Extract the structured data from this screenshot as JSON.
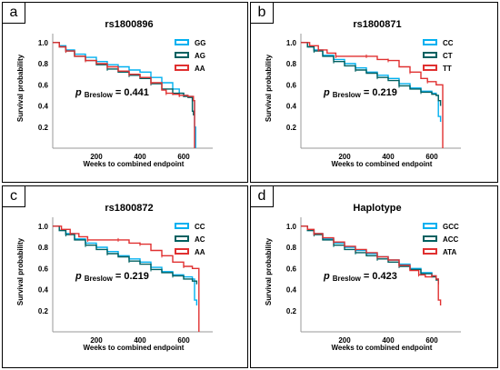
{
  "chart_data": [
    {
      "type": "line",
      "panel_label": "a",
      "title": "rs1800896",
      "xlabel": "Weeks to combined endpoint",
      "ylabel": "Survival probability",
      "xticks": [
        200,
        400,
        600
      ],
      "yticks": [
        0.2,
        0.4,
        0.6,
        0.8,
        1.0
      ],
      "xlim": [
        0,
        700
      ],
      "ylim": [
        0,
        1.05
      ],
      "legend_placement": "top-right",
      "annotation": {
        "p_symbol": "p",
        "p_subscript": "Breslow",
        "p_value_text": "= 0.441"
      },
      "series": [
        {
          "name": "GG",
          "color": "#00b0f0",
          "points": [
            [
              0,
              1.0
            ],
            [
              30,
              0.97
            ],
            [
              60,
              0.93
            ],
            [
              100,
              0.89
            ],
            [
              150,
              0.86
            ],
            [
              200,
              0.82
            ],
            [
              250,
              0.79
            ],
            [
              300,
              0.77
            ],
            [
              350,
              0.74
            ],
            [
              400,
              0.72
            ],
            [
              450,
              0.67
            ],
            [
              500,
              0.62
            ],
            [
              550,
              0.56
            ],
            [
              580,
              0.52
            ],
            [
              600,
              0.5
            ],
            [
              620,
              0.49
            ],
            [
              640,
              0.45
            ],
            [
              650,
              0.2
            ],
            [
              655,
              0.0
            ]
          ]
        },
        {
          "name": "AG",
          "color": "#006060",
          "points": [
            [
              0,
              1.0
            ],
            [
              30,
              0.96
            ],
            [
              60,
              0.92
            ],
            [
              100,
              0.87
            ],
            [
              150,
              0.83
            ],
            [
              200,
              0.79
            ],
            [
              250,
              0.75
            ],
            [
              300,
              0.72
            ],
            [
              350,
              0.69
            ],
            [
              400,
              0.66
            ],
            [
              450,
              0.61
            ],
            [
              500,
              0.56
            ],
            [
              550,
              0.52
            ],
            [
              600,
              0.49
            ],
            [
              620,
              0.48
            ],
            [
              640,
              0.35
            ],
            [
              645,
              0.31
            ]
          ]
        },
        {
          "name": "AA",
          "color": "#e03030",
          "points": [
            [
              0,
              1.0
            ],
            [
              30,
              0.96
            ],
            [
              60,
              0.92
            ],
            [
              100,
              0.87
            ],
            [
              150,
              0.83
            ],
            [
              200,
              0.8
            ],
            [
              250,
              0.77
            ],
            [
              300,
              0.73
            ],
            [
              350,
              0.7
            ],
            [
              400,
              0.67
            ],
            [
              450,
              0.62
            ],
            [
              500,
              0.55
            ],
            [
              520,
              0.52
            ],
            [
              550,
              0.51
            ],
            [
              580,
              0.5
            ],
            [
              620,
              0.49
            ],
            [
              645,
              0.45
            ],
            [
              650,
              0.0
            ]
          ]
        }
      ]
    },
    {
      "type": "line",
      "panel_label": "b",
      "title": "rs1800871",
      "xlabel": "Weeks to combined endpoint",
      "ylabel": "Survival probability",
      "xticks": [
        200,
        400,
        600
      ],
      "yticks": [
        0.2,
        0.4,
        0.6,
        0.8,
        1.0
      ],
      "xlim": [
        0,
        700
      ],
      "ylim": [
        0,
        1.05
      ],
      "legend_placement": "top-right",
      "annotation": {
        "p_symbol": "p",
        "p_subscript": "Breslow",
        "p_value_text": "= 0.219"
      },
      "series": [
        {
          "name": "CC",
          "color": "#00b0f0",
          "points": [
            [
              0,
              1.0
            ],
            [
              30,
              0.96
            ],
            [
              60,
              0.93
            ],
            [
              100,
              0.88
            ],
            [
              150,
              0.84
            ],
            [
              200,
              0.8
            ],
            [
              250,
              0.76
            ],
            [
              300,
              0.72
            ],
            [
              350,
              0.69
            ],
            [
              400,
              0.66
            ],
            [
              450,
              0.61
            ],
            [
              500,
              0.57
            ],
            [
              550,
              0.54
            ],
            [
              600,
              0.52
            ],
            [
              620,
              0.5
            ],
            [
              630,
              0.3
            ],
            [
              640,
              0.25
            ]
          ]
        },
        {
          "name": "CT",
          "color": "#006060",
          "points": [
            [
              0,
              1.0
            ],
            [
              30,
              0.96
            ],
            [
              60,
              0.92
            ],
            [
              100,
              0.87
            ],
            [
              150,
              0.82
            ],
            [
              200,
              0.78
            ],
            [
              250,
              0.74
            ],
            [
              300,
              0.71
            ],
            [
              350,
              0.67
            ],
            [
              400,
              0.64
            ],
            [
              450,
              0.59
            ],
            [
              500,
              0.56
            ],
            [
              550,
              0.53
            ],
            [
              600,
              0.51
            ],
            [
              620,
              0.5
            ],
            [
              630,
              0.45
            ],
            [
              640,
              0.4
            ]
          ]
        },
        {
          "name": "TT",
          "color": "#e03030",
          "points": [
            [
              0,
              1.0
            ],
            [
              40,
              0.97
            ],
            [
              80,
              0.93
            ],
            [
              120,
              0.9
            ],
            [
              160,
              0.87
            ],
            [
              200,
              0.87
            ],
            [
              300,
              0.87
            ],
            [
              350,
              0.84
            ],
            [
              400,
              0.83
            ],
            [
              450,
              0.77
            ],
            [
              500,
              0.72
            ],
            [
              550,
              0.66
            ],
            [
              580,
              0.63
            ],
            [
              620,
              0.6
            ],
            [
              640,
              0.6
            ],
            [
              650,
              0.0
            ]
          ]
        }
      ]
    },
    {
      "type": "line",
      "panel_label": "c",
      "title": "rs1800872",
      "xlabel": "Weeks to combined endpoint",
      "ylabel": "Survival probability",
      "xticks": [
        200,
        400,
        600
      ],
      "yticks": [
        0.2,
        0.4,
        0.6,
        0.8,
        1.0
      ],
      "xlim": [
        0,
        700
      ],
      "ylim": [
        0,
        1.05
      ],
      "legend_placement": "top-right",
      "annotation": {
        "p_symbol": "p",
        "p_subscript": "Breslow",
        "p_value_text": "= 0.219"
      },
      "series": [
        {
          "name": "CC",
          "color": "#00b0f0",
          "points": [
            [
              0,
              1.0
            ],
            [
              30,
              0.96
            ],
            [
              60,
              0.93
            ],
            [
              100,
              0.88
            ],
            [
              150,
              0.84
            ],
            [
              200,
              0.8
            ],
            [
              250,
              0.76
            ],
            [
              300,
              0.72
            ],
            [
              350,
              0.69
            ],
            [
              400,
              0.66
            ],
            [
              450,
              0.61
            ],
            [
              500,
              0.57
            ],
            [
              550,
              0.54
            ],
            [
              600,
              0.52
            ],
            [
              640,
              0.5
            ],
            [
              650,
              0.3
            ],
            [
              660,
              0.25
            ]
          ]
        },
        {
          "name": "AC",
          "color": "#006060",
          "points": [
            [
              0,
              1.0
            ],
            [
              30,
              0.96
            ],
            [
              60,
              0.92
            ],
            [
              100,
              0.87
            ],
            [
              150,
              0.82
            ],
            [
              200,
              0.78
            ],
            [
              250,
              0.74
            ],
            [
              300,
              0.71
            ],
            [
              350,
              0.67
            ],
            [
              400,
              0.64
            ],
            [
              450,
              0.59
            ],
            [
              500,
              0.56
            ],
            [
              550,
              0.53
            ],
            [
              600,
              0.5
            ],
            [
              640,
              0.48
            ],
            [
              660,
              0.45
            ]
          ]
        },
        {
          "name": "AA",
          "color": "#e03030",
          "points": [
            [
              0,
              1.0
            ],
            [
              40,
              0.97
            ],
            [
              80,
              0.93
            ],
            [
              120,
              0.9
            ],
            [
              160,
              0.87
            ],
            [
              200,
              0.87
            ],
            [
              300,
              0.87
            ],
            [
              350,
              0.84
            ],
            [
              400,
              0.83
            ],
            [
              450,
              0.77
            ],
            [
              500,
              0.72
            ],
            [
              550,
              0.66
            ],
            [
              600,
              0.62
            ],
            [
              640,
              0.6
            ],
            [
              660,
              0.6
            ],
            [
              670,
              0.0
            ]
          ]
        }
      ]
    },
    {
      "type": "line",
      "panel_label": "d",
      "title": "Haplotype",
      "xlabel": "Weeks to combined endpoint",
      "ylabel": "Survival probability",
      "xticks": [
        200,
        400,
        600
      ],
      "yticks": [
        0.2,
        0.4,
        0.6,
        0.8,
        1.0
      ],
      "xlim": [
        0,
        700
      ],
      "ylim": [
        0,
        1.05
      ],
      "legend_placement": "top-right",
      "annotation": {
        "p_symbol": "p",
        "p_subscript": "Breslow",
        "p_value_text": "= 0.423"
      },
      "series": [
        {
          "name": "GCC",
          "color": "#00b0f0",
          "points": [
            [
              0,
              1.0
            ],
            [
              30,
              0.96
            ],
            [
              60,
              0.93
            ],
            [
              100,
              0.88
            ],
            [
              150,
              0.84
            ],
            [
              200,
              0.8
            ],
            [
              250,
              0.77
            ],
            [
              300,
              0.74
            ],
            [
              350,
              0.71
            ],
            [
              400,
              0.68
            ],
            [
              450,
              0.64
            ],
            [
              500,
              0.6
            ],
            [
              550,
              0.56
            ],
            [
              600,
              0.53
            ],
            [
              620,
              0.5
            ],
            [
              630,
              0.45
            ]
          ]
        },
        {
          "name": "ACC",
          "color": "#006060",
          "points": [
            [
              0,
              1.0
            ],
            [
              30,
              0.96
            ],
            [
              60,
              0.92
            ],
            [
              100,
              0.87
            ],
            [
              150,
              0.82
            ],
            [
              200,
              0.78
            ],
            [
              250,
              0.75
            ],
            [
              300,
              0.72
            ],
            [
              350,
              0.69
            ],
            [
              400,
              0.66
            ],
            [
              450,
              0.62
            ],
            [
              500,
              0.59
            ],
            [
              550,
              0.55
            ],
            [
              600,
              0.52
            ],
            [
              620,
              0.49
            ],
            [
              630,
              0.45
            ]
          ]
        },
        {
          "name": "ATA",
          "color": "#e03030",
          "points": [
            [
              0,
              1.0
            ],
            [
              30,
              0.97
            ],
            [
              60,
              0.93
            ],
            [
              100,
              0.89
            ],
            [
              150,
              0.85
            ],
            [
              200,
              0.81
            ],
            [
              250,
              0.78
            ],
            [
              300,
              0.75
            ],
            [
              350,
              0.71
            ],
            [
              400,
              0.68
            ],
            [
              450,
              0.63
            ],
            [
              500,
              0.58
            ],
            [
              540,
              0.54
            ],
            [
              570,
              0.52
            ],
            [
              600,
              0.53
            ],
            [
              620,
              0.5
            ],
            [
              630,
              0.3
            ],
            [
              640,
              0.25
            ]
          ]
        }
      ]
    }
  ]
}
